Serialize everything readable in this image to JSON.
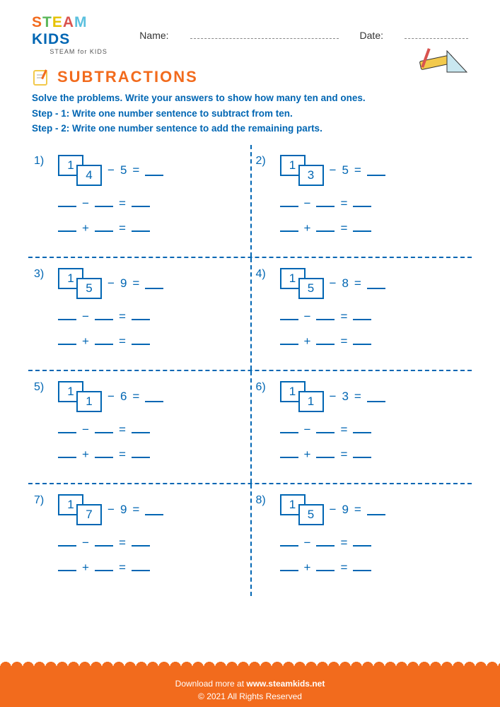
{
  "header": {
    "logo_main_chars": [
      {
        "ch": "S",
        "color": "#f26b1d"
      },
      {
        "ch": "T",
        "color": "#5cb85c"
      },
      {
        "ch": "E",
        "color": "#e6c200"
      },
      {
        "ch": "A",
        "color": "#d9534f"
      },
      {
        "ch": "M",
        "color": "#5bc0de"
      },
      {
        "ch": " ",
        "color": "#000"
      },
      {
        "ch": "K",
        "color": "#0066b3"
      },
      {
        "ch": "I",
        "color": "#0066b3"
      },
      {
        "ch": "D",
        "color": "#0066b3"
      },
      {
        "ch": "S",
        "color": "#0066b3"
      }
    ],
    "logo_sub": "STEAM for KIDS",
    "name_label": "Name:",
    "date_label": "Date:"
  },
  "title": "SUBTRACTIONS",
  "instructions": [
    "Solve the problems. Write your answers to show how many ten and ones.",
    "Step - 1: Write one number sentence to subtract from ten.",
    "Step - 2: Write one number sentence to add the remaining parts."
  ],
  "problems": [
    {
      "n": "1)",
      "ten": "1",
      "one": "4",
      "sub": "5"
    },
    {
      "n": "2)",
      "ten": "1",
      "one": "3",
      "sub": "5"
    },
    {
      "n": "3)",
      "ten": "1",
      "one": "5",
      "sub": "9"
    },
    {
      "n": "4)",
      "ten": "1",
      "one": "5",
      "sub": "8"
    },
    {
      "n": "5)",
      "ten": "1",
      "one": "1",
      "sub": "6"
    },
    {
      "n": "6)",
      "ten": "1",
      "one": "1",
      "sub": "3"
    },
    {
      "n": "7)",
      "ten": "1",
      "one": "7",
      "sub": "9"
    },
    {
      "n": "8)",
      "ten": "1",
      "one": "5",
      "sub": "9"
    }
  ],
  "ops": {
    "minus": "−",
    "plus": "+",
    "eq": "="
  },
  "footer": {
    "line1_pre": "Download more at ",
    "line1_url": "www.steamkids.net",
    "line2": "© 2021 All Rights Reserved"
  },
  "colors": {
    "primary": "#0066b3",
    "accent": "#f26b1d",
    "bg": "#ffffff"
  }
}
